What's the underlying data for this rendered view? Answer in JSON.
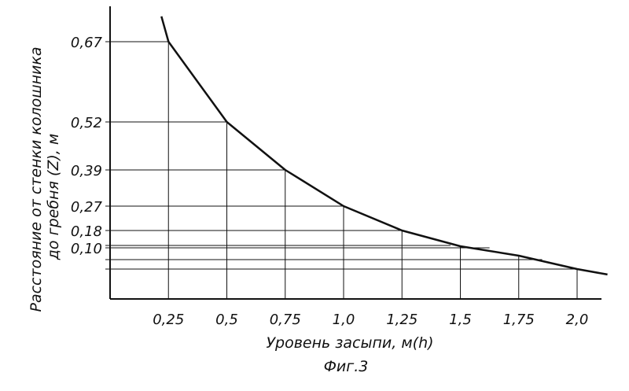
{
  "chart_data": {
    "type": "line",
    "title": "",
    "caption": "Фиг.3",
    "xlabel": "Уровень засыпи, м(h)",
    "ylabel_line1": "Расстояние от стенки колошника",
    "ylabel_line2": "до гребня (Z), м",
    "x_ticks": [
      "0,25",
      "0,5",
      "0,75",
      "1,0",
      "1,25",
      "1,5",
      "1,75",
      "2,0"
    ],
    "x_tick_values": [
      0.25,
      0.5,
      0.75,
      1.0,
      1.25,
      1.5,
      1.75,
      2.0
    ],
    "y_ticks": [
      "0,67",
      "0,52",
      "0,39",
      "0,27",
      "0,18",
      "0,10"
    ],
    "y_tick_values": [
      0.67,
      0.52,
      0.39,
      0.27,
      0.18,
      0.1
    ],
    "extra_gridlines_y": [
      0.13,
      0.07,
      0.055
    ],
    "grid": true,
    "xlim": [
      0,
      2.15
    ],
    "ylim": [
      0,
      0.75
    ],
    "series": [
      {
        "x": [
          0.22,
          0.25,
          0.5,
          0.75,
          1.0,
          1.25,
          1.5,
          1.75,
          2.0,
          2.13
        ],
        "y": [
          0.73,
          0.67,
          0.52,
          0.39,
          0.27,
          0.18,
          0.12,
          0.08,
          0.055,
          0.045
        ]
      }
    ],
    "colors": {
      "ink": "#111111"
    }
  }
}
